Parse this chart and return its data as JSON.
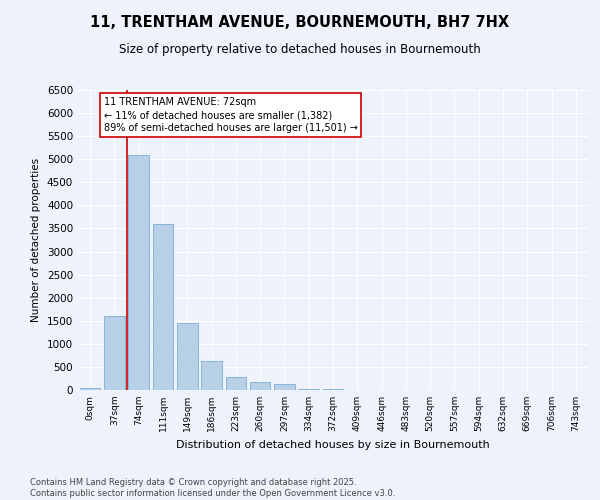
{
  "title": "11, TRENTHAM AVENUE, BOURNEMOUTH, BH7 7HX",
  "subtitle": "Size of property relative to detached houses in Bournemouth",
  "xlabel": "Distribution of detached houses by size in Bournemouth",
  "ylabel": "Number of detached properties",
  "bar_color": "#b8cfe8",
  "bar_edge_color": "#7aadd4",
  "categories": [
    "0sqm",
    "37sqm",
    "74sqm",
    "111sqm",
    "149sqm",
    "186sqm",
    "223sqm",
    "260sqm",
    "297sqm",
    "334sqm",
    "372sqm",
    "409sqm",
    "446sqm",
    "483sqm",
    "520sqm",
    "557sqm",
    "594sqm",
    "632sqm",
    "669sqm",
    "706sqm",
    "743sqm"
  ],
  "values": [
    50,
    1600,
    5100,
    3600,
    1450,
    620,
    290,
    170,
    120,
    30,
    15,
    5,
    2,
    1,
    0,
    0,
    0,
    0,
    0,
    0,
    0
  ],
  "annotation_text": "11 TRENTHAM AVENUE: 72sqm\n← 11% of detached houses are smaller (1,382)\n89% of semi-detached houses are larger (11,501) →",
  "annotation_box_color": "#ffffff",
  "annotation_edge_color": "#cc0000",
  "vline_color": "#cc0000",
  "vline_x": 1.5,
  "ylim": [
    0,
    6500
  ],
  "yticks": [
    0,
    500,
    1000,
    1500,
    2000,
    2500,
    3000,
    3500,
    4000,
    4500,
    5000,
    5500,
    6000,
    6500
  ],
  "footer_text": "Contains HM Land Registry data © Crown copyright and database right 2025.\nContains public sector information licensed under the Open Government Licence v3.0.",
  "background_color": "#eef2fa",
  "grid_color": "#ffffff"
}
